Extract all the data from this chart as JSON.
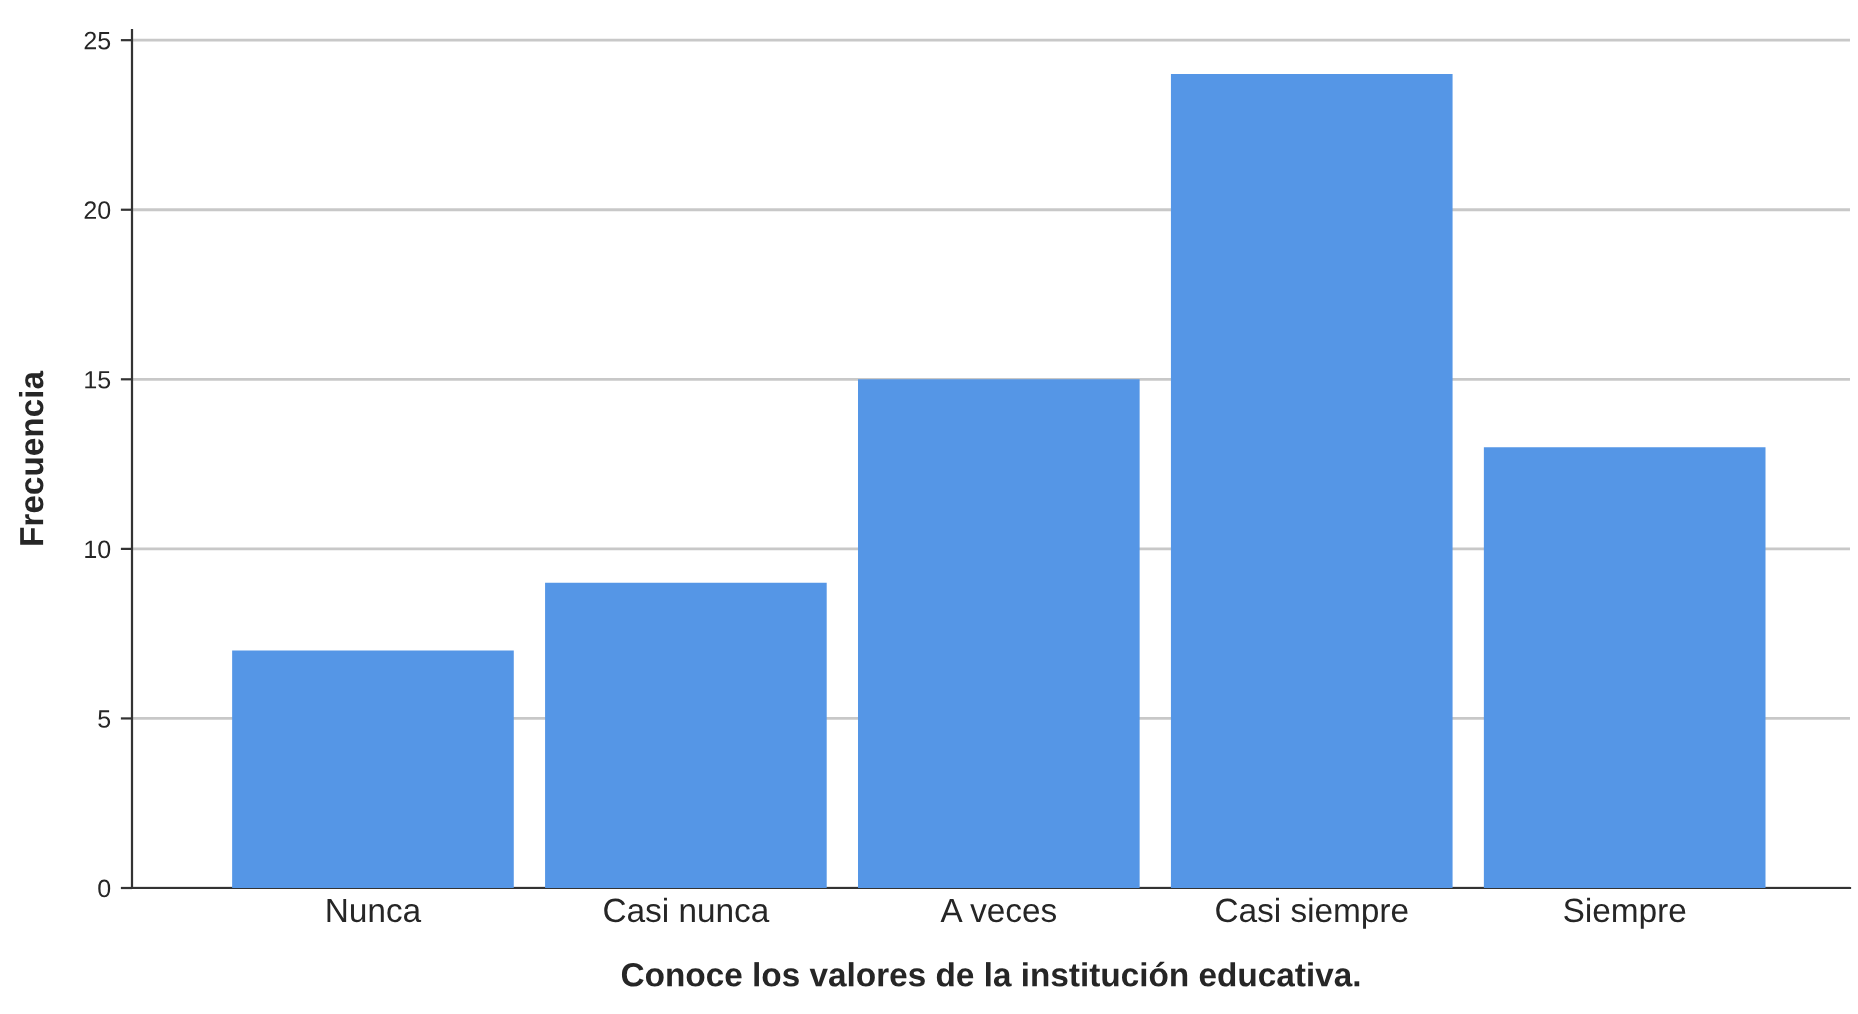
{
  "chart_data": {
    "type": "bar",
    "xlabel": "Conoce los valores de la institución educativa.",
    "ylabel": "Frecuencia",
    "categories": [
      "Nunca",
      "Casi nunca",
      "A veces",
      "Casi siempre",
      "Siempre"
    ],
    "values": [
      7,
      9,
      15,
      24,
      13
    ],
    "color": "#5596e6",
    "ylim": [
      0,
      25.3
    ],
    "yticks": [
      0,
      5,
      10,
      15,
      20,
      25
    ],
    "grid": "y"
  }
}
